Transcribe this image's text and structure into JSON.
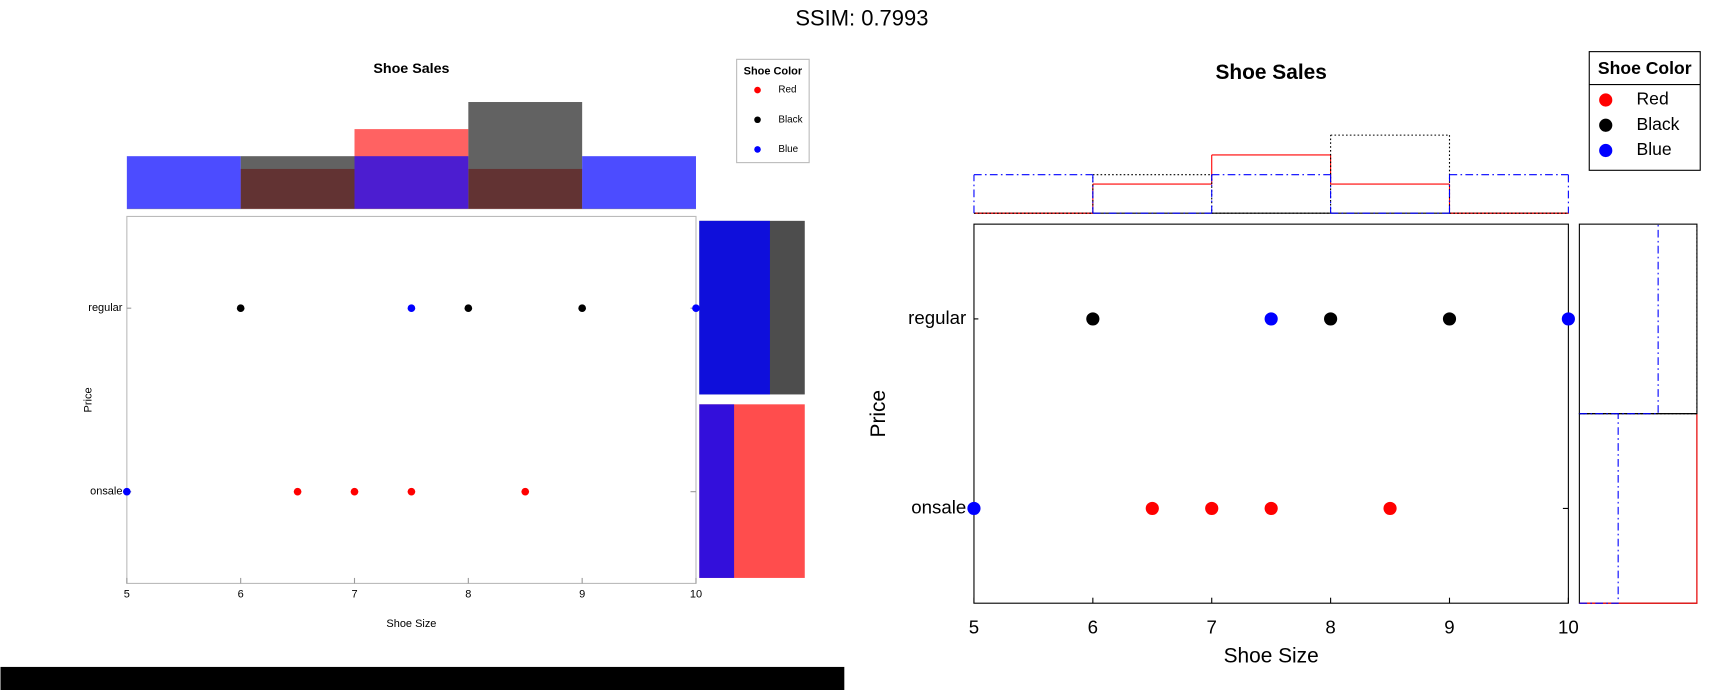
{
  "header": "SSIM: 0.7993",
  "chart_data": [
    {
      "type": "scatter",
      "title": "Shoe Sales",
      "xlabel": "Shoe Size",
      "ylabel": "Price",
      "categories": [
        "onsale",
        "regular"
      ],
      "xlim": [
        5,
        10
      ],
      "xticks": [
        5,
        6,
        7,
        8,
        9,
        10
      ],
      "legend_title": "Shoe Color",
      "legend": "upper right",
      "bins": [
        5,
        6,
        7,
        8,
        9,
        10
      ],
      "series": [
        {
          "name": "Red",
          "color": "#ff0000",
          "hist_color": "#ff2020",
          "x": [
            6.5,
            7,
            7.5,
            8.5
          ],
          "y": [
            "onsale",
            "onsale",
            "onsale",
            "onsale"
          ],
          "hist": [
            0,
            0.25,
            0.5,
            0.25,
            0
          ],
          "price_hist": [
            1,
            0
          ]
        },
        {
          "name": "Black",
          "color": "#000000",
          "hist_color": "#202020",
          "x": [
            6,
            8,
            9
          ],
          "y": [
            "regular",
            "regular",
            "regular"
          ],
          "hist": [
            0,
            0.33,
            0,
            0.67,
            0
          ],
          "price_hist": [
            0,
            1
          ]
        },
        {
          "name": "Blue",
          "color": "#0000ff",
          "hist_color": "#0000ff",
          "x": [
            5,
            7.5,
            10
          ],
          "y": [
            "onsale",
            "regular",
            "regular"
          ],
          "hist": [
            0.33,
            0,
            0.33,
            0,
            0.33
          ],
          "price_hist": [
            0.33,
            0.67
          ]
        }
      ]
    },
    {
      "type": "scatter",
      "title": "Shoe Sales",
      "xlabel": "Shoe Size",
      "ylabel": "Price",
      "categories": [
        "onsale",
        "regular"
      ],
      "xlim": [
        5,
        10
      ],
      "xticks": [
        5,
        6,
        7,
        8,
        9,
        10
      ],
      "legend_title": "Shoe Color",
      "legend": "upper right",
      "bins": [
        5,
        6,
        7,
        8,
        9,
        10
      ],
      "series": [
        {
          "name": "Red",
          "color": "#ff0000",
          "line": "solid",
          "x": [
            6.5,
            7,
            7.5,
            8.5
          ],
          "y": [
            "onsale",
            "onsale",
            "onsale",
            "onsale"
          ],
          "hist": [
            0,
            0.25,
            0.5,
            0.25,
            0
          ],
          "price_hist": [
            1,
            0
          ]
        },
        {
          "name": "Black",
          "color": "#000000",
          "line": "dotted",
          "x": [
            6,
            8,
            9
          ],
          "y": [
            "regular",
            "regular",
            "regular"
          ],
          "hist": [
            0,
            0.33,
            0,
            0.67,
            0
          ],
          "price_hist": [
            0,
            1
          ]
        },
        {
          "name": "Blue",
          "color": "#0000ff",
          "line": "dashdot",
          "x": [
            5,
            7.5,
            10
          ],
          "y": [
            "onsale",
            "regular",
            "regular"
          ],
          "hist": [
            0.33,
            0,
            0.33,
            0,
            0.33
          ],
          "price_hist": [
            0.33,
            0.67
          ]
        }
      ]
    }
  ]
}
